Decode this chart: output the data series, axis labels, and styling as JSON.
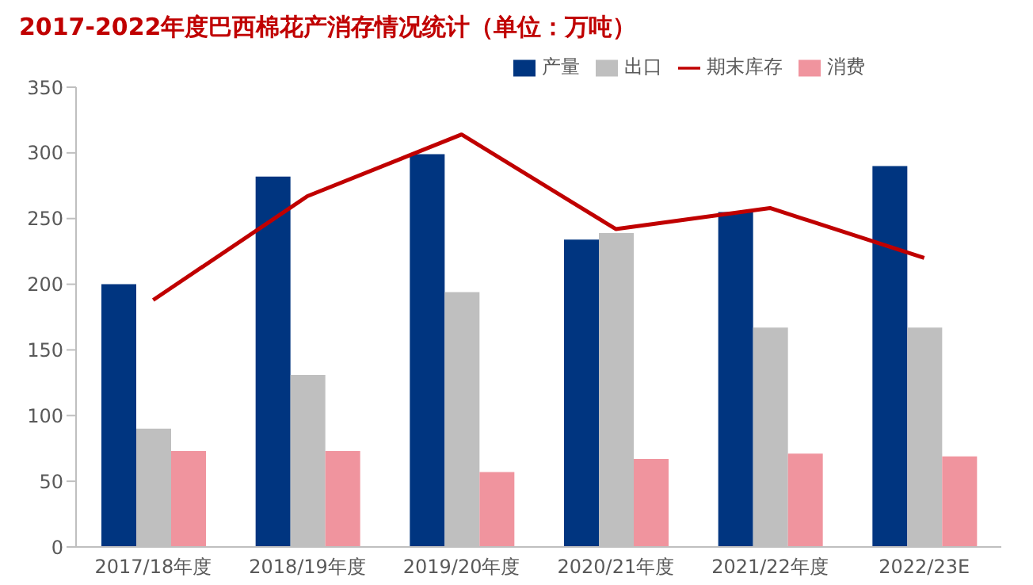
{
  "chart_data": {
    "type": "bar",
    "title": "2017-2022年度巴西棉花产消存情况统计（单位：万吨）",
    "categories": [
      "2017/18年度",
      "2018/19年度",
      "2019/20年度",
      "2020/21年度",
      "2021/22年度",
      "2022/23E"
    ],
    "series": [
      {
        "name": "产量",
        "color": "#003580",
        "values": [
          200,
          282,
          299,
          234,
          255,
          290
        ]
      },
      {
        "name": "出口",
        "color": "#bfbfbf",
        "values": [
          90,
          131,
          194,
          239,
          167,
          167
        ]
      },
      {
        "name": "消费",
        "color": "#f0949e",
        "values": [
          73,
          73,
          57,
          67,
          71,
          69
        ]
      },
      {
        "name": "期末库存",
        "type": "line",
        "color": "#c00000",
        "values": [
          188,
          267,
          314,
          242,
          258,
          220
        ]
      }
    ],
    "ylim": [
      0,
      350
    ],
    "yticks": [
      0,
      50,
      100,
      150,
      200,
      250,
      300,
      350
    ],
    "grid": false,
    "legend": "top",
    "marker": "none",
    "line_style": "solid"
  }
}
